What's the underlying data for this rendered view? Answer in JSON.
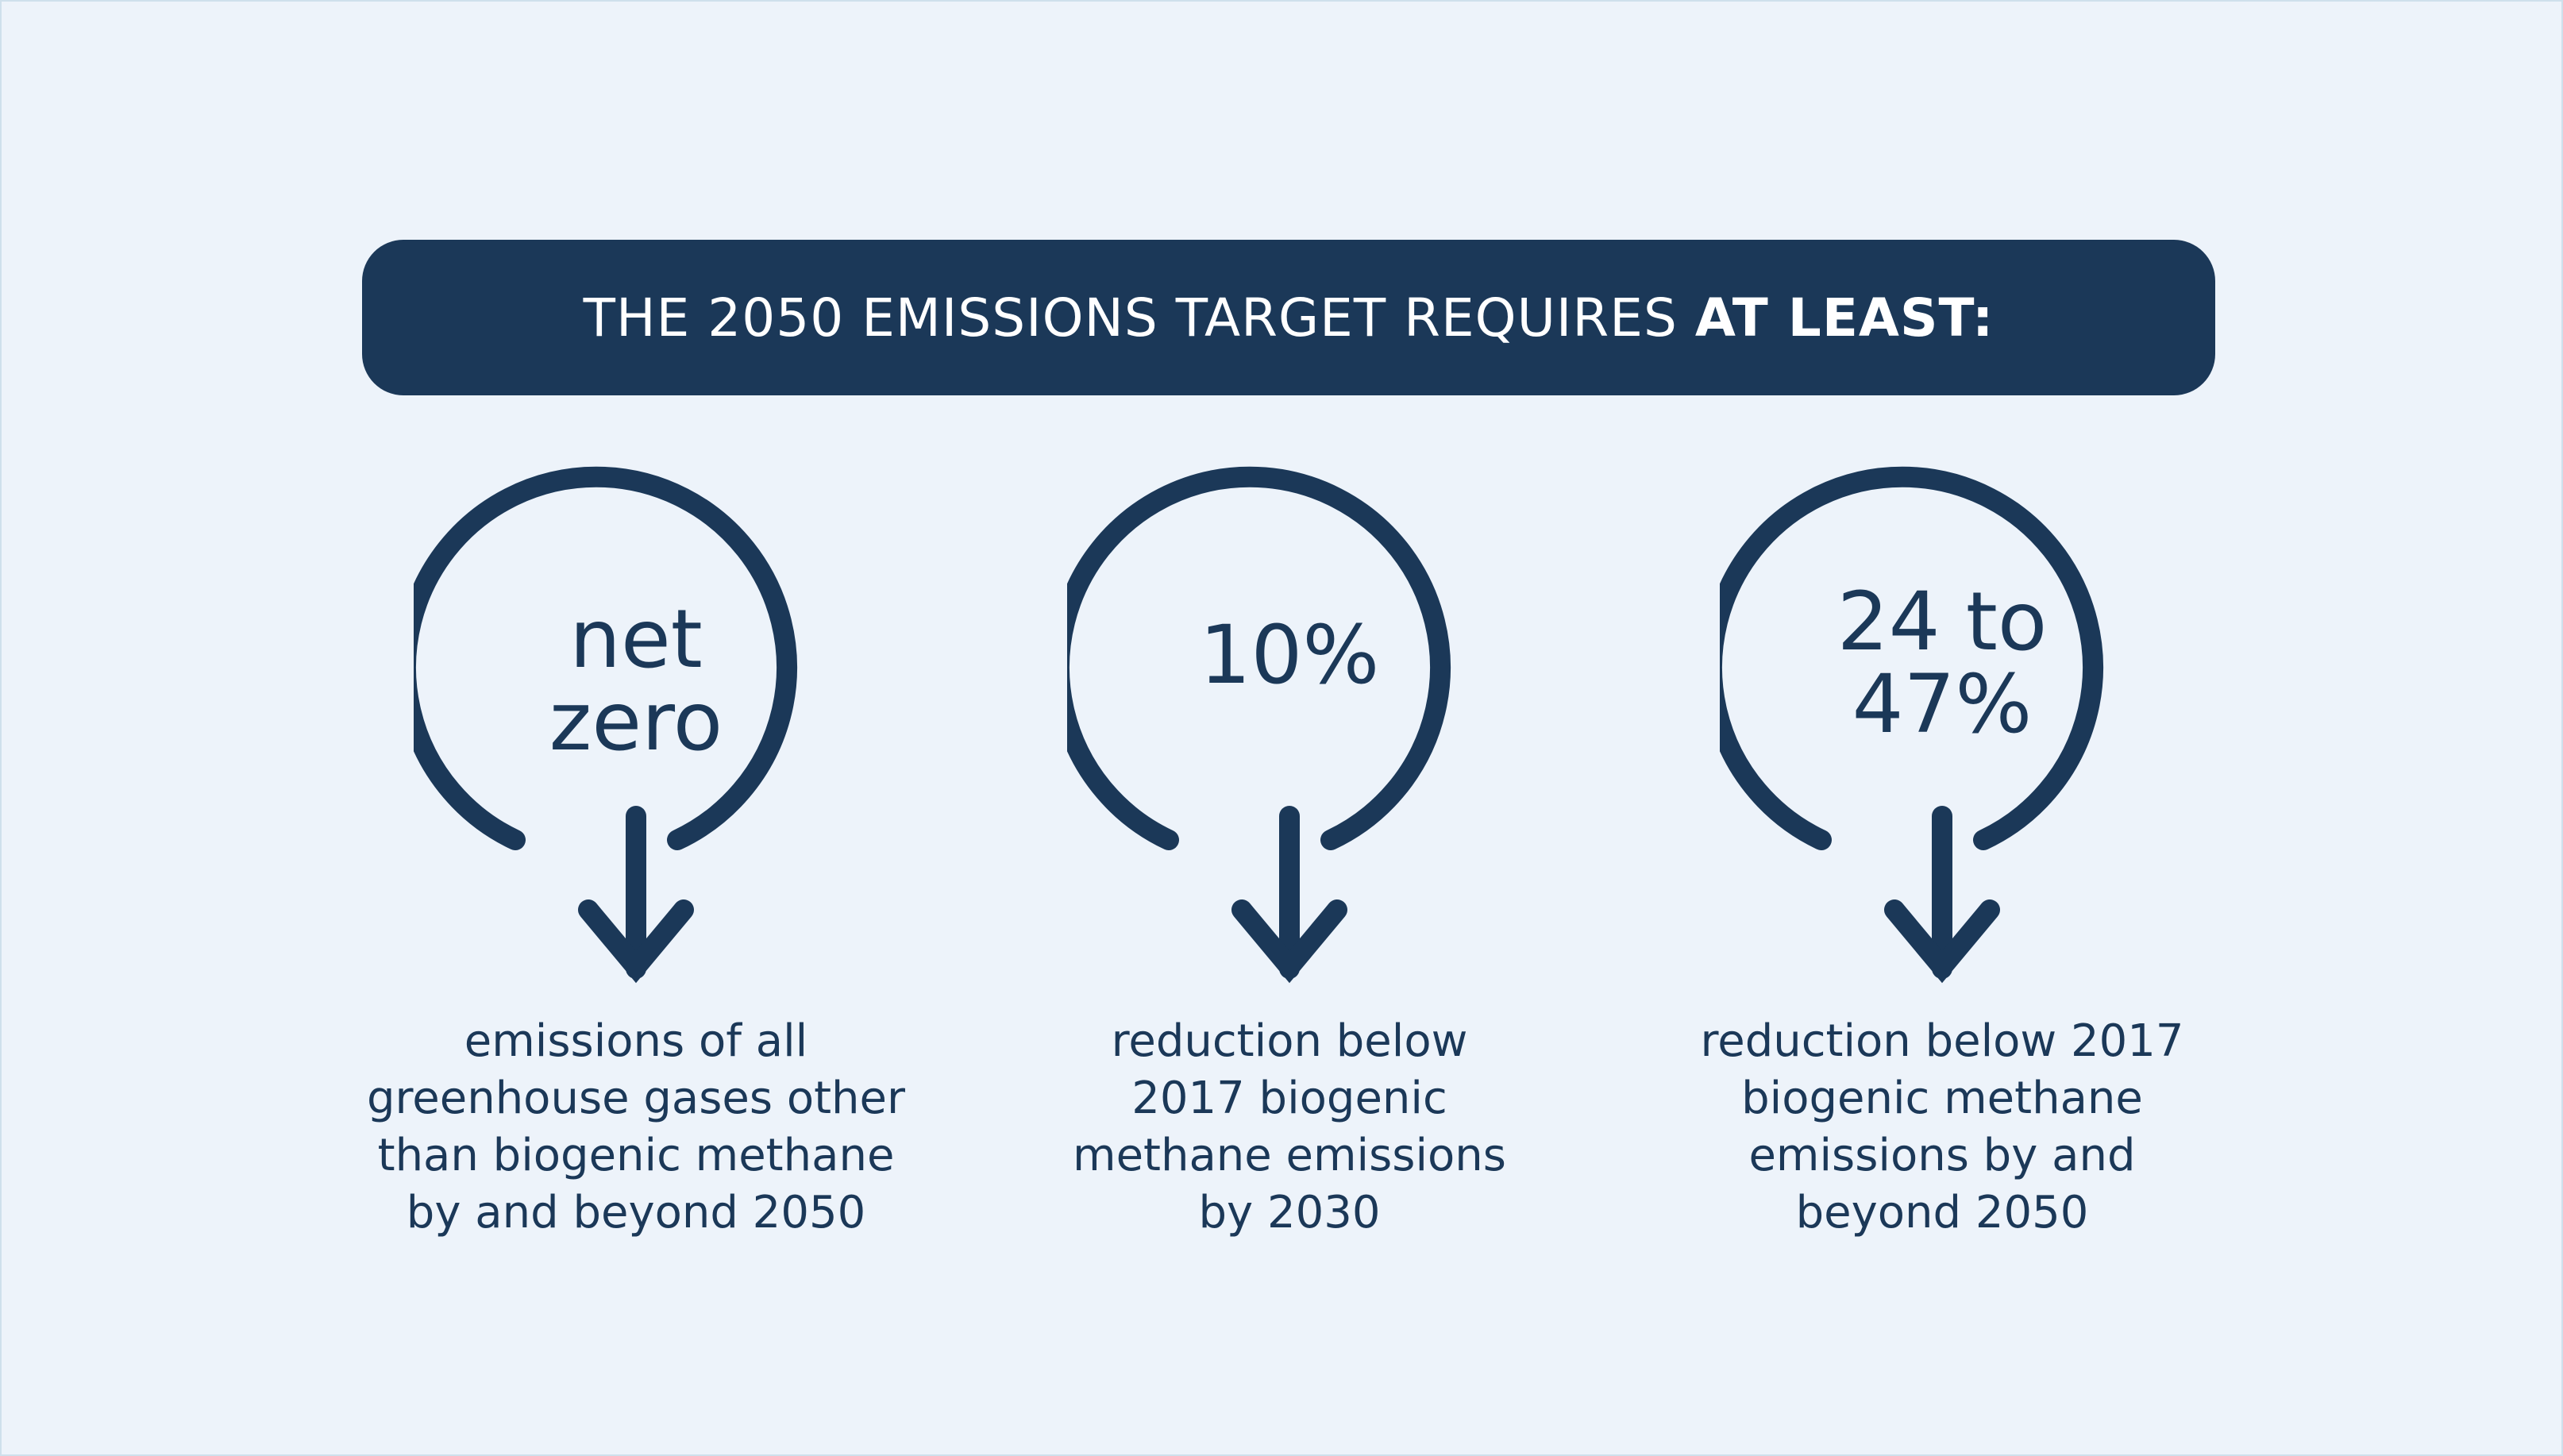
{
  "header": {
    "title_prefix": "THE 2050 EMISSIONS TARGET REQUIRES ",
    "title_emphasis": "AT LEAST:"
  },
  "targets": [
    {
      "value": "net\nzero",
      "description": "emissions of all\ngreenhouse gases other\nthan biogenic methane\nby and beyond 2050"
    },
    {
      "value": "10%",
      "description": "reduction below\n2017 biogenic\nmethane emissions\nby 2030"
    },
    {
      "value": "24 to\n47%",
      "description": "reduction below 2017\nbiogenic methane\nemissions by and\nbeyond 2050"
    }
  ],
  "icons": {
    "target_icon": "circular-down-arrow-icon"
  },
  "colors": {
    "background": "#edf3fa",
    "primary": "#1b3858",
    "banner_text": "#ffffff"
  }
}
